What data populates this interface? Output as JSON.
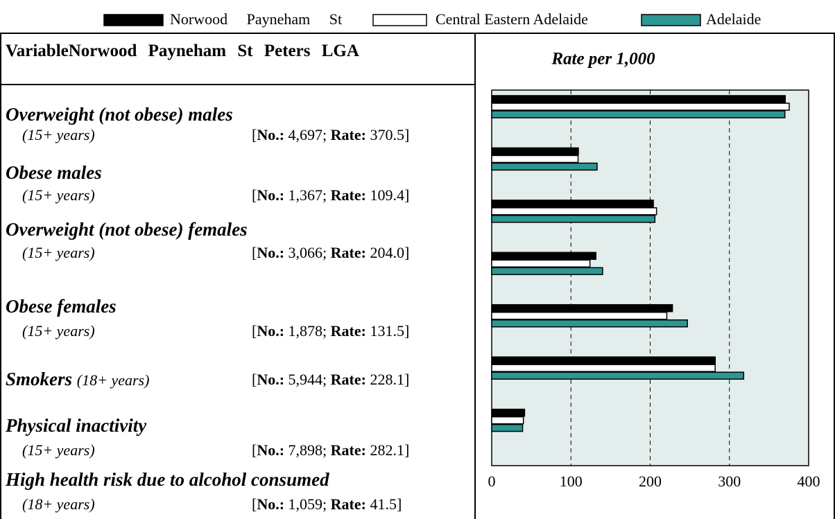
{
  "legend": [
    "Norwood Payneham St",
    "Central Eastern Adelaide",
    "Adelaide"
  ],
  "table": {
    "header": "VariableNorwood Payneham St Peters LGA",
    "format": {
      "open": "[",
      "no_label": "No.:",
      "sep": ";",
      "rate_label": "Rate:",
      "close": "]"
    },
    "rows": [
      {
        "name": "Overweight (not obese) males",
        "age": "(15+ years)",
        "no": "4,697",
        "rate": "370.5"
      },
      {
        "name": "Obese males",
        "age": "(15+ years)",
        "no": "1,367",
        "rate": "109.4"
      },
      {
        "name": "Overweight (not obese) females",
        "age": "(15+ years)",
        "no": "3,066",
        "rate": "204.0"
      },
      {
        "name": "Obese females",
        "age": "(15+ years)",
        "no": "1,878",
        "rate": "131.5"
      },
      {
        "name": "Smokers",
        "age": "(18+ years)",
        "no": "5,944",
        "rate": "228.1"
      },
      {
        "name": "Physical inactivity",
        "age": "(15+ years)",
        "no": "7,898",
        "rate": "282.1"
      },
      {
        "name": "High health risk due to alcohol consumed",
        "age": "(18+ years)",
        "no": "1,059",
        "rate": "41.5"
      }
    ]
  },
  "chart_data": {
    "type": "bar",
    "orientation": "horizontal",
    "title": "Rate per 1,000",
    "categories": [
      null,
      null,
      null,
      null,
      null,
      null,
      null
    ],
    "series": [
      {
        "name": "Norwood Payneham St",
        "color": "#000000",
        "values": [
          370.5,
          109.4,
          204.0,
          131.5,
          228.1,
          282.1,
          41.5
        ]
      },
      {
        "name": "Central Eastern Adelaide",
        "color": "#ffffff",
        "values": [
          375.5,
          109,
          208,
          124,
          221,
          282,
          40
        ]
      },
      {
        "name": "Adelaide",
        "color": "#2e9693",
        "values": [
          370,
          133,
          206,
          140,
          247,
          318,
          39
        ]
      }
    ],
    "xlim": [
      0,
      400
    ],
    "xticks": [
      0,
      100,
      200,
      300,
      400
    ],
    "grid": true,
    "background": "#e3eeec"
  }
}
